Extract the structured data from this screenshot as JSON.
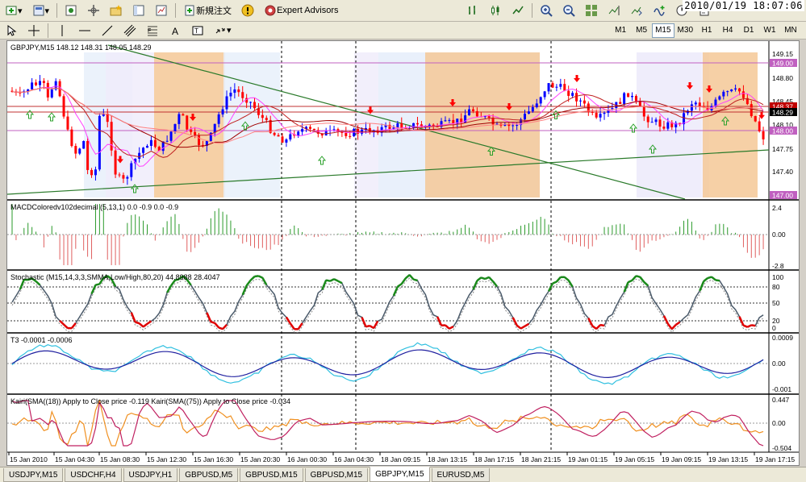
{
  "toolbar": {
    "new_order": "新規注文",
    "expert_advisors": "Expert Advisors",
    "clock": "2010/01/19 18:07:06",
    "timeframes": [
      "M1",
      "M5",
      "M15",
      "M30",
      "H1",
      "H4",
      "D1",
      "W1",
      "MN"
    ],
    "active_timeframe": "M15"
  },
  "chart": {
    "main_header": "GBPJPY,M15  148.12 148.31 148.05 148.29",
    "price_ticks": [
      "149.15",
      "148.80",
      "148.45",
      "148.10",
      "147.75",
      "147.40"
    ],
    "price_labels": {
      "top": "149.00",
      "current1": "148.37",
      "current2": "148.29",
      "low": "148.00",
      "bottom": "147.00"
    },
    "macd_header": "MACDColoredv102decimal (5,13,1) 0.0 -0.9 0.0 -0.9",
    "macd_ticks": [
      "2.4",
      "0.00",
      "-2.8"
    ],
    "stoch_header": "Stochastic (M15,14,3,3,SMMA,Low/High,80,20) 44.8988 28.4047",
    "stoch_ticks": [
      "100",
      "80",
      "50",
      "20",
      "0"
    ],
    "t3_header": "T3 -0.0001 -0.0006",
    "t3_ticks": [
      "0.0009",
      "0.00",
      "-0.001"
    ],
    "kairi_header": "Kairi(SMA((18)) Apply to Close price -0.119  Kairi(SMA((75)) Apply to Close price -0.034",
    "kairi_ticks": [
      "0.447",
      "0.00",
      "-0.504"
    ],
    "time_labels": [
      "15 Jan 2010",
      "15 Jan 04:30",
      "15 Jan 08:30",
      "15 Jan 12:30",
      "15 Jan 16:30",
      "15 Jan 20:30",
      "16 Jan 00:30",
      "16 Jan 04:30",
      "18 Jan 09:15",
      "18 Jan 13:15",
      "18 Jan 17:15",
      "18 Jan 21:15",
      "19 Jan 01:15",
      "19 Jan 05:15",
      "19 Jan 09:15",
      "19 Jan 13:15",
      "19 Jan 17:15"
    ]
  },
  "tabs": [
    "USDJPY,M15",
    "USDCHF,H4",
    "USDJPY,H1",
    "GBPUSD,M5",
    "GBPUSD,M15",
    "GBPUSD,M15",
    "GBPJPY,M15",
    "EURUSD,M5"
  ],
  "active_tab_index": 6,
  "colors": {
    "up": "#0000ff",
    "down": "#ff0000",
    "rect": "#f5c896",
    "rect2": "#d8d0f0"
  }
}
